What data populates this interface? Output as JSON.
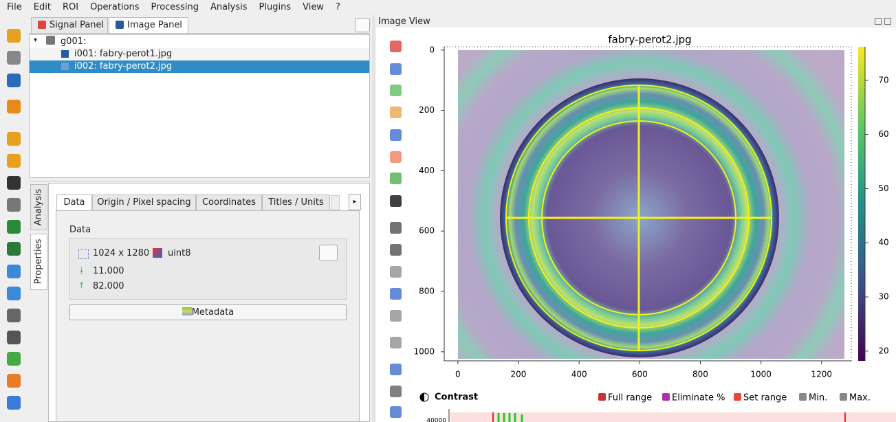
{
  "menu": [
    "File",
    "Edit",
    "ROI",
    "Operations",
    "Processing",
    "Analysis",
    "Plugins",
    "View",
    "?"
  ],
  "panel_tabs": [
    "Signal Panel",
    "Image Panel"
  ],
  "tree": {
    "group": "g001:",
    "items": [
      "i001: fabry-perot1.jpg",
      "i002: fabry-perot2.jpg"
    ]
  },
  "side_tabs": [
    "Analysis",
    "Properties"
  ],
  "property_tabs": [
    "Data",
    "Origin / Pixel spacing",
    "Coordinates",
    "Titles / Units"
  ],
  "data_section": {
    "title": "Data",
    "size": "1024 x 1280",
    "dtype": "uint8",
    "min": "11.000",
    "max": "82.000",
    "metadata_button": "Metadata"
  },
  "image_view": {
    "title": "Image View",
    "plot_title": "fabry-perot2.jpg",
    "xlim": [
      -45,
      1298
    ],
    "ylim": [
      -11,
      1030
    ],
    "clim": [
      18.2,
      76.2
    ],
    "xticks": [
      0,
      200,
      400,
      600,
      800,
      1000,
      1200
    ],
    "yticks": [
      0,
      200,
      400,
      600,
      800,
      1000
    ],
    "colorbar_ticks": [
      20,
      30,
      40,
      50,
      60,
      70
    ]
  },
  "contrast": {
    "title": "Contrast",
    "buttons": [
      "Full range",
      "Eliminate %",
      "Set range",
      "Min.",
      "Max."
    ],
    "ytick": 40000
  }
}
